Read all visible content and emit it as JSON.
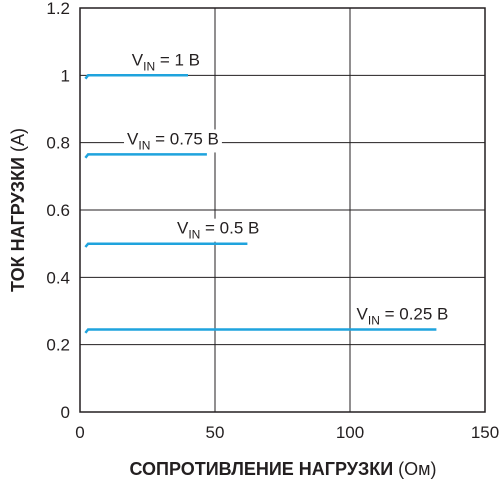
{
  "chart_data": {
    "type": "line",
    "xlabel_bold": "СОПРОТИВЛЕНИЕ НАГРУЗКИ",
    "xlabel_unit": "(Ом)",
    "ylabel_bold": "ТОК НАГРУЗКИ",
    "ylabel_unit": "(А)",
    "xlim": [
      0,
      150
    ],
    "ylim": [
      0,
      1.2
    ],
    "x_ticks": [
      0,
      50,
      100,
      150
    ],
    "x_tick_labels": [
      "0",
      "50",
      "100",
      "150"
    ],
    "y_ticks": [
      0,
      0.2,
      0.4,
      0.6,
      0.8,
      1.0,
      1.2
    ],
    "y_tick_labels": [
      "0",
      "0.2",
      "0.4",
      "0.6",
      "0.8",
      "1",
      "1.2"
    ],
    "grid": true,
    "line_color": "#1fa3dd",
    "series": [
      {
        "label_main": "V",
        "label_sub": "IN",
        "label_rest": " = 1 В",
        "x": [
          2,
          3,
          40
        ],
        "y": [
          0.99,
          1.0,
          1.0
        ]
      },
      {
        "label_main": "V",
        "label_sub": "IN",
        "label_rest": " = 0.75 В",
        "x": [
          2,
          3,
          47
        ],
        "y": [
          0.755,
          0.765,
          0.765
        ]
      },
      {
        "label_main": "V",
        "label_sub": "IN",
        "label_rest": " = 0.5 В",
        "x": [
          2,
          3,
          62
        ],
        "y": [
          0.49,
          0.5,
          0.5
        ]
      },
      {
        "label_main": "V",
        "label_sub": "IN",
        "label_rest": " = 0.25 В",
        "x": [
          2,
          3,
          132
        ],
        "y": [
          0.235,
          0.245,
          0.245
        ]
      }
    ]
  }
}
